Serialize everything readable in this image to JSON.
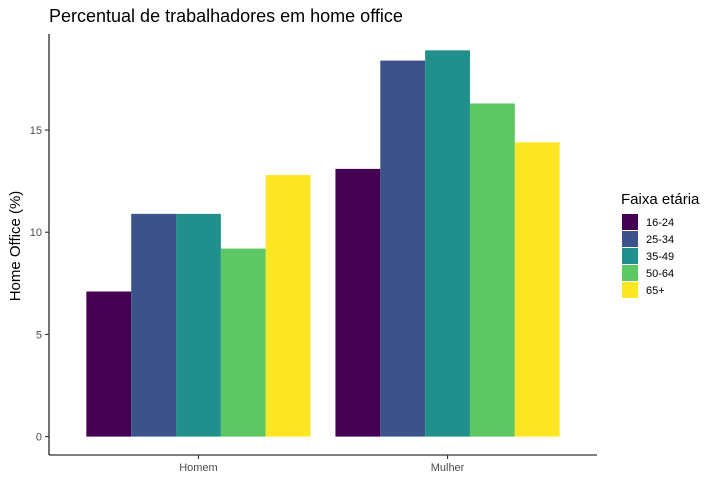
{
  "chart_data": {
    "type": "bar",
    "title": "Percentual de trabalhadores em home office",
    "xlabel": "",
    "ylabel": "Home Office (%)",
    "categories": [
      "Homem",
      "Mulher"
    ],
    "series": [
      {
        "name": "16-24",
        "color": "#440154",
        "values": [
          7.1,
          13.1
        ]
      },
      {
        "name": "25-34",
        "color": "#3B528B",
        "values": [
          10.9,
          18.4
        ]
      },
      {
        "name": "35-49",
        "color": "#21908C",
        "values": [
          10.9,
          18.9
        ]
      },
      {
        "name": "50-64",
        "color": "#5DC863",
        "values": [
          9.2,
          16.3
        ]
      },
      {
        "name": "65+",
        "color": "#FDE725",
        "values": [
          12.8,
          14.4
        ]
      }
    ],
    "ylim": [
      -0.9,
      19.7
    ],
    "yticks": [
      0,
      5,
      10,
      15
    ],
    "grid": false,
    "legend": {
      "title": "Faixa etária",
      "placement": "right"
    }
  }
}
